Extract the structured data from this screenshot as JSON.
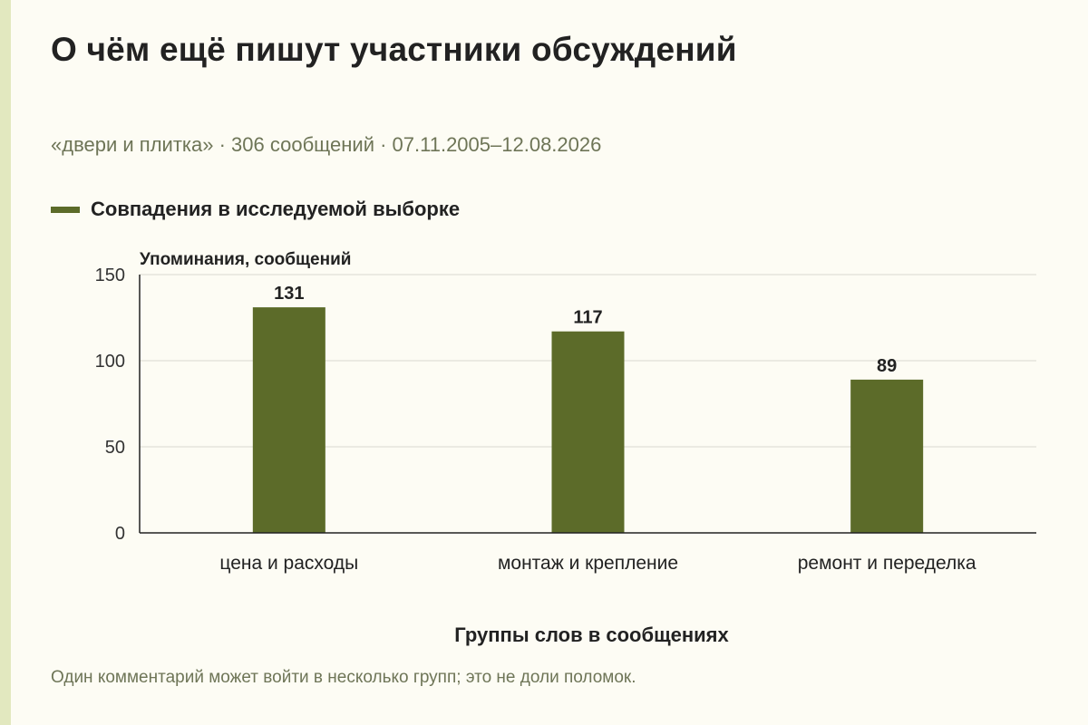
{
  "header": {
    "title": "О чём ещё пишут участники обсуждений",
    "subtitle": "«двери и плитка» · 306 сообщений · 07.11.2005–12.08.2026"
  },
  "legend": {
    "label": "Совпадения в исследуемой выборке",
    "color": "#5c6b29"
  },
  "footer": {
    "note": "Один комментарий может войти в несколько групп; это не доли поломок."
  },
  "colors": {
    "background": "#fdfcf4",
    "accent_strip": "#e2e8bf",
    "bar": "#5c6b29",
    "gridline": "#d9d9d0",
    "muted_text": "#6e7557"
  },
  "chart_data": {
    "type": "bar",
    "title": "О чём ещё пишут участники обсуждений",
    "subtitle": "«двери и плитка» · 306 сообщений · 07.11.2005–12.08.2026",
    "xlabel": "Группы слов в сообщениях",
    "ylabel": "Упоминания, сообщений",
    "categories": [
      "цена и расходы",
      "монтаж и крепление",
      "ремонт и переделка"
    ],
    "series": [
      {
        "name": "Совпадения в исследуемой выборке",
        "values": [
          131,
          117,
          89
        ]
      }
    ],
    "ylim": [
      0,
      150
    ],
    "yticks": [
      0,
      50,
      100,
      150
    ],
    "data_labels": true,
    "grid": true,
    "legend_position": "top-left"
  }
}
